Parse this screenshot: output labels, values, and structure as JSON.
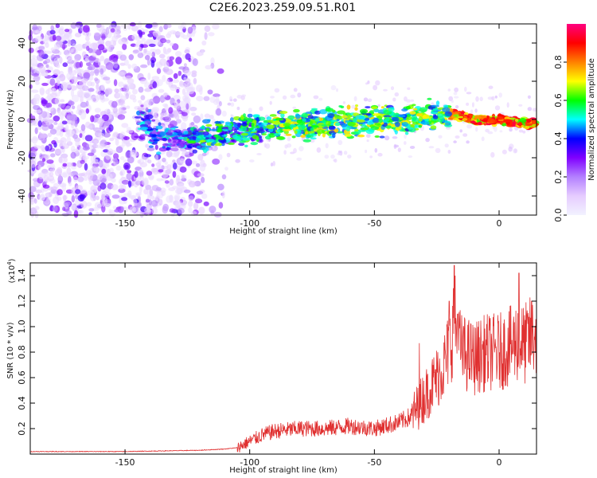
{
  "title": "C2E6.2023.259.09.51.R01",
  "chart_data": [
    {
      "type": "heatmap",
      "xlabel": "Height of straight line (km)",
      "ylabel": "Frequency (Hz)",
      "xlim": [
        -188,
        15
      ],
      "ylim": [
        -50,
        50
      ],
      "x_ticks": [
        -150,
        -100,
        -50,
        0
      ],
      "y_ticks": [
        -40,
        -20,
        0,
        20,
        40
      ],
      "colorbar": {
        "label": "Normalized spectral amplitude",
        "range": [
          0,
          1
        ],
        "ticks": [
          0.0,
          0.2,
          0.4,
          0.6,
          0.8
        ],
        "colormap": [
          "#f2f2ff",
          "#e6ccff",
          "#b380ff",
          "#8000ff",
          "#0000ff",
          "#00ffff",
          "#00ff00",
          "#ffff00",
          "#ff8000",
          "#ff0000",
          "#ff0080"
        ]
      },
      "ridge": {
        "x": [
          -140,
          -130,
          -120,
          -110,
          -100,
          -90,
          -80,
          -70,
          -60,
          -50,
          -40,
          -30,
          -20,
          -10,
          0,
          10
        ],
        "y": [
          -10,
          -9,
          -10,
          -7,
          -5,
          -4,
          -3,
          -2,
          -1,
          0,
          0,
          1,
          3,
          0,
          0,
          -2
        ]
      }
    },
    {
      "type": "line",
      "xlabel": "Height of straight line (km)",
      "ylabel": "SNR (10 * v/v)",
      "y_scale_label": "(x10",
      "y_scale_exponent": "4",
      "y_scale_close": ")",
      "xlim": [
        -188,
        15
      ],
      "ylim": [
        0,
        1.5
      ],
      "x_ticks": [
        -150,
        -100,
        -50,
        0
      ],
      "y_ticks": [
        0.2,
        0.4,
        0.6,
        0.8,
        1.0,
        1.2,
        1.4
      ],
      "color": "#e03030",
      "envelope": {
        "x": [
          -188,
          -150,
          -120,
          -110,
          -105,
          -100,
          -95,
          -90,
          -80,
          -70,
          -60,
          -50,
          -40,
          -35,
          -30,
          -25,
          -22,
          -19,
          -18,
          -17,
          -15,
          -10,
          -5,
          0,
          5,
          8,
          10,
          12,
          15
        ],
        "y": [
          0.02,
          0.02,
          0.03,
          0.04,
          0.05,
          0.1,
          0.15,
          0.18,
          0.2,
          0.2,
          0.22,
          0.2,
          0.25,
          0.3,
          0.45,
          0.6,
          0.7,
          0.9,
          1.1,
          0.95,
          0.8,
          0.75,
          0.8,
          0.8,
          0.85,
          0.9,
          0.85,
          0.9,
          0.95
        ]
      },
      "peaks": [
        {
          "x": -32,
          "y": 0.87
        },
        {
          "x": -20,
          "y": 1.2
        },
        {
          "x": -18,
          "y": 1.48
        },
        {
          "x": -16.5,
          "y": 1.1
        },
        {
          "x": 8,
          "y": 1.42
        },
        {
          "x": 13,
          "y": 1.2
        }
      ]
    }
  ]
}
